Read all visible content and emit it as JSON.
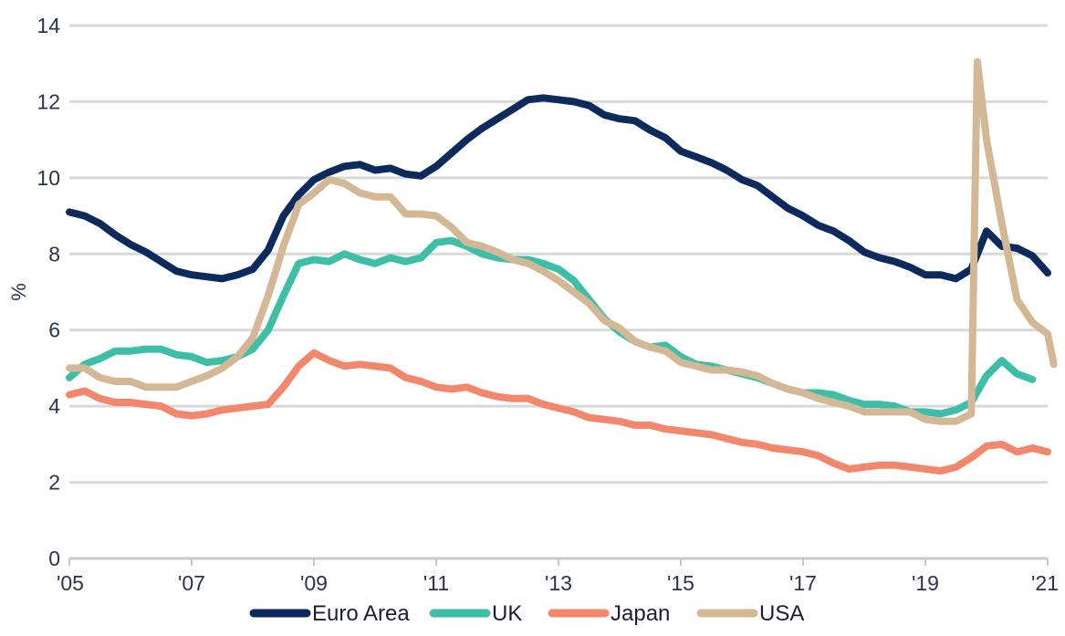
{
  "chart_data": {
    "type": "line",
    "title": "",
    "xlabel": "",
    "ylabel": "%",
    "ylim": [
      0,
      14
    ],
    "xlim": [
      2005,
      2021
    ],
    "yticks": [
      "0",
      "2",
      "4",
      "6",
      "8",
      "10",
      "12",
      "14"
    ],
    "xticks": [
      {
        "label": "'05",
        "x": 2005
      },
      {
        "label": "'07",
        "x": 2007
      },
      {
        "label": "'09",
        "x": 2009
      },
      {
        "label": "'11",
        "x": 2011
      },
      {
        "label": "'13",
        "x": 2013
      },
      {
        "label": "'15",
        "x": 2015
      },
      {
        "label": "'17",
        "x": 2017
      },
      {
        "label": "'19",
        "x": 2019
      },
      {
        "label": "'21",
        "x": 2021
      }
    ],
    "grid": true,
    "legend": "bottom",
    "series": [
      {
        "name": "Euro Area",
        "color": "#0d2a5c",
        "points": [
          [
            2005.0,
            9.1
          ],
          [
            2005.25,
            9.0
          ],
          [
            2005.5,
            8.8
          ],
          [
            2005.75,
            8.5
          ],
          [
            2006.0,
            8.25
          ],
          [
            2006.25,
            8.05
          ],
          [
            2006.5,
            7.8
          ],
          [
            2006.75,
            7.55
          ],
          [
            2007.0,
            7.45
          ],
          [
            2007.25,
            7.4
          ],
          [
            2007.5,
            7.35
          ],
          [
            2007.75,
            7.45
          ],
          [
            2008.0,
            7.6
          ],
          [
            2008.25,
            8.1
          ],
          [
            2008.5,
            9.0
          ],
          [
            2008.75,
            9.55
          ],
          [
            2009.0,
            9.95
          ],
          [
            2009.25,
            10.15
          ],
          [
            2009.5,
            10.3
          ],
          [
            2009.75,
            10.35
          ],
          [
            2010.0,
            10.2
          ],
          [
            2010.25,
            10.25
          ],
          [
            2010.5,
            10.1
          ],
          [
            2010.75,
            10.05
          ],
          [
            2011.0,
            10.3
          ],
          [
            2011.25,
            10.65
          ],
          [
            2011.5,
            11.0
          ],
          [
            2011.75,
            11.3
          ],
          [
            2012.0,
            11.55
          ],
          [
            2012.25,
            11.8
          ],
          [
            2012.5,
            12.05
          ],
          [
            2012.75,
            12.1
          ],
          [
            2013.0,
            12.05
          ],
          [
            2013.25,
            12.0
          ],
          [
            2013.5,
            11.9
          ],
          [
            2013.75,
            11.65
          ],
          [
            2014.0,
            11.55
          ],
          [
            2014.25,
            11.5
          ],
          [
            2014.5,
            11.25
          ],
          [
            2014.75,
            11.05
          ],
          [
            2015.0,
            10.7
          ],
          [
            2015.25,
            10.55
          ],
          [
            2015.5,
            10.4
          ],
          [
            2015.75,
            10.2
          ],
          [
            2016.0,
            9.95
          ],
          [
            2016.25,
            9.8
          ],
          [
            2016.5,
            9.5
          ],
          [
            2016.75,
            9.2
          ],
          [
            2017.0,
            9.0
          ],
          [
            2017.25,
            8.75
          ],
          [
            2017.5,
            8.6
          ],
          [
            2017.75,
            8.35
          ],
          [
            2018.0,
            8.05
          ],
          [
            2018.25,
            7.9
          ],
          [
            2018.5,
            7.8
          ],
          [
            2018.75,
            7.65
          ],
          [
            2019.0,
            7.45
          ],
          [
            2019.25,
            7.45
          ],
          [
            2019.5,
            7.35
          ],
          [
            2019.75,
            7.6
          ],
          [
            2020.0,
            8.6
          ],
          [
            2020.25,
            8.2
          ],
          [
            2020.5,
            8.15
          ],
          [
            2020.75,
            7.95
          ],
          [
            2021.0,
            7.5
          ]
        ]
      },
      {
        "name": "UK",
        "color": "#3dbfa7",
        "points": [
          [
            2005.0,
            4.75
          ],
          [
            2005.25,
            5.1
          ],
          [
            2005.5,
            5.25
          ],
          [
            2005.75,
            5.45
          ],
          [
            2006.0,
            5.45
          ],
          [
            2006.25,
            5.5
          ],
          [
            2006.5,
            5.5
          ],
          [
            2006.75,
            5.35
          ],
          [
            2007.0,
            5.3
          ],
          [
            2007.25,
            5.15
          ],
          [
            2007.5,
            5.2
          ],
          [
            2007.75,
            5.3
          ],
          [
            2008.0,
            5.5
          ],
          [
            2008.25,
            6.0
          ],
          [
            2008.5,
            6.9
          ],
          [
            2008.75,
            7.75
          ],
          [
            2009.0,
            7.85
          ],
          [
            2009.25,
            7.8
          ],
          [
            2009.5,
            8.0
          ],
          [
            2009.75,
            7.85
          ],
          [
            2010.0,
            7.75
          ],
          [
            2010.25,
            7.9
          ],
          [
            2010.5,
            7.8
          ],
          [
            2010.75,
            7.9
          ],
          [
            2011.0,
            8.3
          ],
          [
            2011.25,
            8.35
          ],
          [
            2011.5,
            8.2
          ],
          [
            2011.75,
            8.0
          ],
          [
            2012.0,
            7.9
          ],
          [
            2012.25,
            7.85
          ],
          [
            2012.5,
            7.85
          ],
          [
            2012.75,
            7.75
          ],
          [
            2013.0,
            7.6
          ],
          [
            2013.25,
            7.3
          ],
          [
            2013.5,
            6.8
          ],
          [
            2013.75,
            6.3
          ],
          [
            2014.0,
            5.95
          ],
          [
            2014.25,
            5.7
          ],
          [
            2014.5,
            5.55
          ],
          [
            2014.75,
            5.6
          ],
          [
            2015.0,
            5.3
          ],
          [
            2015.25,
            5.1
          ],
          [
            2015.5,
            5.05
          ],
          [
            2015.75,
            4.95
          ],
          [
            2016.0,
            4.85
          ],
          [
            2016.25,
            4.75
          ],
          [
            2016.5,
            4.6
          ],
          [
            2016.75,
            4.45
          ],
          [
            2017.0,
            4.35
          ],
          [
            2017.25,
            4.35
          ],
          [
            2017.5,
            4.3
          ],
          [
            2017.75,
            4.15
          ],
          [
            2018.0,
            4.05
          ],
          [
            2018.25,
            4.05
          ],
          [
            2018.5,
            4.0
          ],
          [
            2018.75,
            3.85
          ],
          [
            2019.0,
            3.85
          ],
          [
            2019.25,
            3.8
          ],
          [
            2019.5,
            3.9
          ],
          [
            2019.75,
            4.1
          ],
          [
            2020.0,
            4.8
          ],
          [
            2020.25,
            5.2
          ],
          [
            2020.5,
            4.85
          ],
          [
            2020.75,
            4.7
          ]
        ]
      },
      {
        "name": "Japan",
        "color": "#f2876b",
        "points": [
          [
            2005.0,
            4.3
          ],
          [
            2005.25,
            4.4
          ],
          [
            2005.5,
            4.2
          ],
          [
            2005.75,
            4.1
          ],
          [
            2006.0,
            4.1
          ],
          [
            2006.25,
            4.05
          ],
          [
            2006.5,
            4.0
          ],
          [
            2006.75,
            3.8
          ],
          [
            2007.0,
            3.75
          ],
          [
            2007.25,
            3.8
          ],
          [
            2007.5,
            3.9
          ],
          [
            2007.75,
            3.95
          ],
          [
            2008.0,
            4.0
          ],
          [
            2008.25,
            4.05
          ],
          [
            2008.5,
            4.5
          ],
          [
            2008.75,
            5.05
          ],
          [
            2009.0,
            5.4
          ],
          [
            2009.25,
            5.2
          ],
          [
            2009.5,
            5.05
          ],
          [
            2009.75,
            5.1
          ],
          [
            2010.0,
            5.05
          ],
          [
            2010.25,
            5.0
          ],
          [
            2010.5,
            4.75
          ],
          [
            2010.75,
            4.65
          ],
          [
            2011.0,
            4.5
          ],
          [
            2011.25,
            4.45
          ],
          [
            2011.5,
            4.5
          ],
          [
            2011.75,
            4.35
          ],
          [
            2012.0,
            4.25
          ],
          [
            2012.25,
            4.2
          ],
          [
            2012.5,
            4.2
          ],
          [
            2012.75,
            4.05
          ],
          [
            2013.0,
            3.95
          ],
          [
            2013.25,
            3.85
          ],
          [
            2013.5,
            3.7
          ],
          [
            2013.75,
            3.65
          ],
          [
            2014.0,
            3.6
          ],
          [
            2014.25,
            3.5
          ],
          [
            2014.5,
            3.5
          ],
          [
            2014.75,
            3.4
          ],
          [
            2015.0,
            3.35
          ],
          [
            2015.25,
            3.3
          ],
          [
            2015.5,
            3.25
          ],
          [
            2015.75,
            3.15
          ],
          [
            2016.0,
            3.05
          ],
          [
            2016.25,
            3.0
          ],
          [
            2016.5,
            2.9
          ],
          [
            2016.75,
            2.85
          ],
          [
            2017.0,
            2.8
          ],
          [
            2017.25,
            2.7
          ],
          [
            2017.5,
            2.5
          ],
          [
            2017.75,
            2.35
          ],
          [
            2018.0,
            2.4
          ],
          [
            2018.25,
            2.45
          ],
          [
            2018.5,
            2.45
          ],
          [
            2018.75,
            2.4
          ],
          [
            2019.0,
            2.35
          ],
          [
            2019.25,
            2.3
          ],
          [
            2019.5,
            2.4
          ],
          [
            2019.75,
            2.65
          ],
          [
            2020.0,
            2.95
          ],
          [
            2020.25,
            3.0
          ],
          [
            2020.5,
            2.8
          ],
          [
            2020.75,
            2.9
          ],
          [
            2021.0,
            2.8
          ]
        ]
      },
      {
        "name": "USA",
        "color": "#d4b896",
        "points": [
          [
            2005.0,
            5.0
          ],
          [
            2005.25,
            5.0
          ],
          [
            2005.5,
            4.75
          ],
          [
            2005.75,
            4.65
          ],
          [
            2006.0,
            4.65
          ],
          [
            2006.25,
            4.5
          ],
          [
            2006.5,
            4.5
          ],
          [
            2006.75,
            4.5
          ],
          [
            2007.0,
            4.65
          ],
          [
            2007.25,
            4.8
          ],
          [
            2007.5,
            5.0
          ],
          [
            2007.75,
            5.3
          ],
          [
            2008.0,
            5.8
          ],
          [
            2008.25,
            6.9
          ],
          [
            2008.5,
            8.2
          ],
          [
            2008.75,
            9.3
          ],
          [
            2009.0,
            9.6
          ],
          [
            2009.25,
            9.95
          ],
          [
            2009.5,
            9.85
          ],
          [
            2009.75,
            9.6
          ],
          [
            2010.0,
            9.5
          ],
          [
            2010.25,
            9.5
          ],
          [
            2010.5,
            9.05
          ],
          [
            2010.75,
            9.05
          ],
          [
            2011.0,
            9.0
          ],
          [
            2011.25,
            8.7
          ],
          [
            2011.5,
            8.3
          ],
          [
            2011.75,
            8.2
          ],
          [
            2012.0,
            8.05
          ],
          [
            2012.25,
            7.85
          ],
          [
            2012.5,
            7.75
          ],
          [
            2012.75,
            7.55
          ],
          [
            2013.0,
            7.3
          ],
          [
            2013.25,
            7.0
          ],
          [
            2013.5,
            6.7
          ],
          [
            2013.75,
            6.25
          ],
          [
            2014.0,
            6.05
          ],
          [
            2014.25,
            5.7
          ],
          [
            2014.5,
            5.55
          ],
          [
            2014.75,
            5.45
          ],
          [
            2015.0,
            5.15
          ],
          [
            2015.25,
            5.05
          ],
          [
            2015.5,
            4.95
          ],
          [
            2015.75,
            4.95
          ],
          [
            2016.0,
            4.9
          ],
          [
            2016.25,
            4.8
          ],
          [
            2016.5,
            4.6
          ],
          [
            2016.75,
            4.45
          ],
          [
            2017.0,
            4.35
          ],
          [
            2017.25,
            4.2
          ],
          [
            2017.5,
            4.1
          ],
          [
            2017.75,
            4.0
          ],
          [
            2018.0,
            3.85
          ],
          [
            2018.25,
            3.85
          ],
          [
            2018.5,
            3.85
          ],
          [
            2018.75,
            3.85
          ],
          [
            2019.0,
            3.65
          ],
          [
            2019.25,
            3.6
          ],
          [
            2019.5,
            3.6
          ],
          [
            2019.75,
            3.8
          ],
          [
            2019.85,
            13.05
          ],
          [
            2020.0,
            11.0
          ],
          [
            2020.25,
            8.8
          ],
          [
            2020.5,
            6.8
          ],
          [
            2020.75,
            6.2
          ],
          [
            2021.0,
            5.9
          ],
          [
            2021.1,
            5.1
          ]
        ]
      }
    ]
  }
}
